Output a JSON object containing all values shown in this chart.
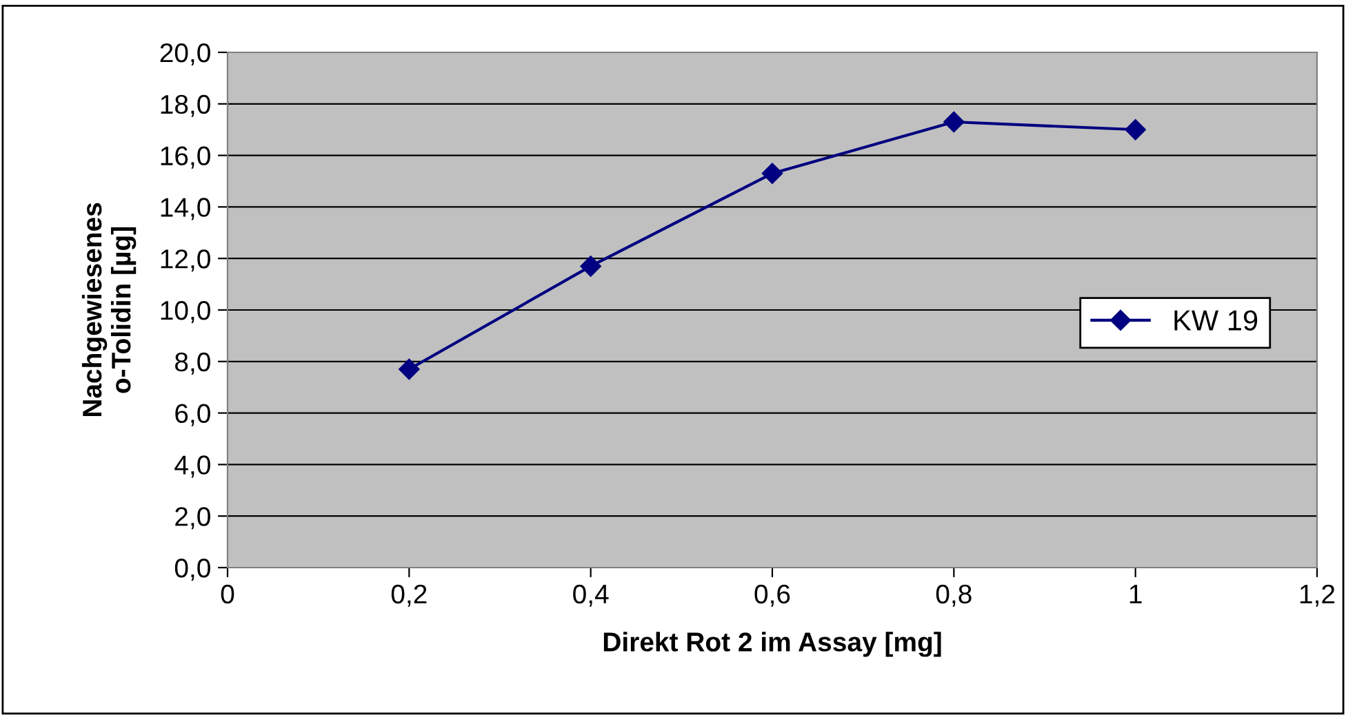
{
  "chart_data": {
    "type": "line",
    "xlabel": "Direkt Rot 2 im Assay [mg]",
    "ylabel": "Nachgewiesenes\no-Tolidin [µg]",
    "x": [
      0.2,
      0.4,
      0.6,
      0.8,
      1.0
    ],
    "series": [
      {
        "name": "KW 19",
        "color": "#000080",
        "values": [
          7.7,
          11.7,
          15.3,
          17.3,
          17.0
        ]
      }
    ],
    "xlim": [
      0,
      1.2
    ],
    "xticks": [
      0,
      {
        "value": 0.2,
        "label": "0,2"
      },
      {
        "value": 0.4,
        "label": "0,4"
      },
      {
        "value": 0.6,
        "label": "0,6"
      },
      {
        "value": 0.8,
        "label": "0,8"
      },
      1,
      {
        "value": 1.2,
        "label": "1,2"
      }
    ],
    "ylim": [
      0,
      20
    ],
    "yticks": [
      {
        "value": 0,
        "label": "0,0"
      },
      {
        "value": 2,
        "label": "2,0"
      },
      {
        "value": 4,
        "label": "4,0"
      },
      {
        "value": 6,
        "label": "6,0"
      },
      {
        "value": 8,
        "label": "8,0"
      },
      {
        "value": 10,
        "label": "10,0"
      },
      {
        "value": 12,
        "label": "12,0"
      },
      {
        "value": 14,
        "label": "14,0"
      },
      {
        "value": 16,
        "label": "16,0"
      },
      {
        "value": 18,
        "label": "18,0"
      },
      {
        "value": 20,
        "label": "20,0"
      }
    ],
    "grid": "y",
    "legend": "center right",
    "marker": "diamond",
    "line_style": "solid"
  }
}
